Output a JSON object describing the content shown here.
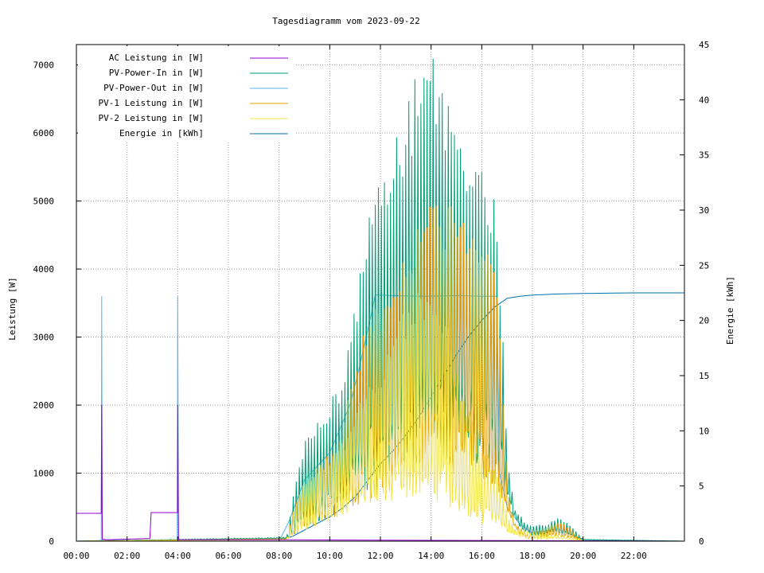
{
  "chart_data": {
    "type": "line",
    "title": "Tagesdiagramm vom 2023-09-22",
    "xlabel": "",
    "ylabel": "Leistung [W]",
    "y2label": "Energie [kWh]",
    "x_ticks": [
      "00:00",
      "02:00",
      "04:00",
      "06:00",
      "08:00",
      "10:00",
      "12:00",
      "14:00",
      "16:00",
      "18:00",
      "20:00",
      "22:00"
    ],
    "xlim_hours": [
      0,
      24
    ],
    "ylim": [
      0,
      7300
    ],
    "y_ticks": [
      0,
      1000,
      2000,
      3000,
      4000,
      5000,
      6000,
      7000
    ],
    "y2lim": [
      0,
      45
    ],
    "y2_ticks": [
      0,
      5,
      10,
      15,
      20,
      25,
      30,
      35,
      40,
      45
    ],
    "grid": true,
    "legend_position": "top-left",
    "series": [
      {
        "name": "AC Leistung in [W]",
        "color": "#9400d3",
        "axis": "y",
        "points": [
          [
            0,
            410
          ],
          [
            0.98,
            410
          ],
          [
            1.0,
            2000
          ],
          [
            1.02,
            30
          ],
          [
            1.2,
            20
          ],
          [
            2.9,
            40
          ],
          [
            2.95,
            420
          ],
          [
            3.99,
            420
          ],
          [
            4.0,
            2000
          ],
          [
            4.03,
            20
          ],
          [
            8.0,
            20
          ],
          [
            24,
            0
          ]
        ]
      },
      {
        "name": "PV-Power-In in [W]",
        "color": "#009e73",
        "axis": "y",
        "envelope": [
          [
            0,
            0
          ],
          [
            8.3,
            60
          ],
          [
            8.6,
            800
          ],
          [
            9.0,
            1500
          ],
          [
            9.5,
            1800
          ],
          [
            10.0,
            2100
          ],
          [
            10.5,
            2400
          ],
          [
            11.0,
            3600
          ],
          [
            11.5,
            4800
          ],
          [
            12.0,
            5350
          ],
          [
            12.5,
            5800
          ],
          [
            13.0,
            6300
          ],
          [
            13.5,
            7000
          ],
          [
            14.0,
            7300
          ],
          [
            14.5,
            6700
          ],
          [
            15.0,
            6000
          ],
          [
            15.5,
            5700
          ],
          [
            16.0,
            5500
          ],
          [
            16.5,
            5200
          ],
          [
            16.8,
            3500
          ],
          [
            17.0,
            1300
          ],
          [
            17.3,
            500
          ],
          [
            17.8,
            250
          ],
          [
            18.5,
            250
          ],
          [
            19.0,
            350
          ],
          [
            19.5,
            250
          ],
          [
            20.0,
            30
          ],
          [
            24,
            0
          ]
        ],
        "floor": [
          [
            0,
            0
          ],
          [
            8.3,
            40
          ],
          [
            9.0,
            200
          ],
          [
            10.0,
            350
          ],
          [
            11.0,
            600
          ],
          [
            12.0,
            900
          ],
          [
            13.0,
            1200
          ],
          [
            14.0,
            1300
          ],
          [
            15.0,
            1250
          ],
          [
            16.0,
            1100
          ],
          [
            16.5,
            1000
          ],
          [
            17.0,
            600
          ],
          [
            17.5,
            200
          ],
          [
            18.0,
            80
          ],
          [
            19.0,
            120
          ],
          [
            20.0,
            20
          ],
          [
            24,
            0
          ]
        ]
      },
      {
        "name": "PV-Power-Out in [W]",
        "color": "#56b4e9",
        "axis": "y",
        "points": [
          [
            0,
            0
          ],
          [
            0.98,
            0
          ],
          [
            1.0,
            3600
          ],
          [
            1.02,
            0
          ],
          [
            3.98,
            0
          ],
          [
            4.0,
            3600
          ],
          [
            4.03,
            0
          ],
          [
            8.0,
            0
          ],
          [
            8.4,
            300
          ],
          [
            9.0,
            900
          ],
          [
            10.0,
            1300
          ],
          [
            10.8,
            2000
          ],
          [
            11.2,
            2600
          ],
          [
            11.5,
            3100
          ],
          [
            11.8,
            3620
          ],
          [
            12.5,
            3610
          ],
          [
            13.5,
            3600
          ],
          [
            14.0,
            3600
          ],
          [
            15.0,
            3610
          ],
          [
            16.0,
            3600
          ],
          [
            16.6,
            3600
          ],
          [
            16.7,
            1000
          ],
          [
            17.0,
            500
          ],
          [
            17.5,
            250
          ],
          [
            18.0,
            120
          ],
          [
            19.0,
            180
          ],
          [
            20.0,
            20
          ],
          [
            24,
            0
          ]
        ]
      },
      {
        "name": "PV-1 Leistung in [W]",
        "color": "#e69f00",
        "axis": "y",
        "envelope": [
          [
            0,
            0
          ],
          [
            8.3,
            40
          ],
          [
            8.6,
            500
          ],
          [
            9.0,
            900
          ],
          [
            9.5,
            1100
          ],
          [
            10.0,
            1300
          ],
          [
            10.5,
            1700
          ],
          [
            11.0,
            2700
          ],
          [
            11.5,
            3300
          ],
          [
            12.0,
            3500
          ],
          [
            12.5,
            3800
          ],
          [
            13.0,
            4200
          ],
          [
            13.5,
            4900
          ],
          [
            14.0,
            5300
          ],
          [
            14.5,
            5000
          ],
          [
            15.0,
            4900
          ],
          [
            15.5,
            4800
          ],
          [
            16.0,
            4600
          ],
          [
            16.5,
            4400
          ],
          [
            16.8,
            2500
          ],
          [
            17.0,
            900
          ],
          [
            17.3,
            300
          ],
          [
            17.8,
            100
          ],
          [
            18.5,
            200
          ],
          [
            19.0,
            300
          ],
          [
            19.5,
            200
          ],
          [
            20.0,
            0
          ],
          [
            24,
            0
          ]
        ],
        "floor": [
          [
            0,
            0
          ],
          [
            8.3,
            30
          ],
          [
            9.0,
            150
          ],
          [
            10.0,
            300
          ],
          [
            11.0,
            500
          ],
          [
            12.0,
            700
          ],
          [
            13.0,
            900
          ],
          [
            14.0,
            1000
          ],
          [
            15.0,
            950
          ],
          [
            16.0,
            800
          ],
          [
            16.5,
            700
          ],
          [
            17.0,
            400
          ],
          [
            17.5,
            100
          ],
          [
            18.0,
            30
          ],
          [
            19.0,
            80
          ],
          [
            20.0,
            0
          ],
          [
            24,
            0
          ]
        ]
      },
      {
        "name": "PV-2 Leistung in [W]",
        "color": "#f0e442",
        "axis": "y",
        "envelope": [
          [
            0,
            0
          ],
          [
            8.3,
            30
          ],
          [
            8.6,
            500
          ],
          [
            9.0,
            900
          ],
          [
            9.5,
            1100
          ],
          [
            10.0,
            1250
          ],
          [
            10.5,
            1450
          ],
          [
            11.0,
            2000
          ],
          [
            11.5,
            2400
          ],
          [
            12.0,
            2600
          ],
          [
            12.5,
            3000
          ],
          [
            13.0,
            3500
          ],
          [
            13.5,
            3800
          ],
          [
            14.0,
            3700
          ],
          [
            14.5,
            3500
          ],
          [
            15.0,
            2600
          ],
          [
            15.5,
            2000
          ],
          [
            16.0,
            1500
          ],
          [
            16.5,
            1100
          ],
          [
            16.8,
            800
          ],
          [
            17.0,
            400
          ],
          [
            17.3,
            200
          ],
          [
            17.8,
            150
          ],
          [
            18.5,
            120
          ],
          [
            19.0,
            100
          ],
          [
            19.5,
            60
          ],
          [
            20.0,
            0
          ],
          [
            24,
            0
          ]
        ],
        "floor": [
          [
            0,
            0
          ],
          [
            8.3,
            20
          ],
          [
            9.0,
            150
          ],
          [
            10.0,
            300
          ],
          [
            11.0,
            450
          ],
          [
            12.0,
            550
          ],
          [
            13.0,
            600
          ],
          [
            14.0,
            600
          ],
          [
            15.0,
            450
          ],
          [
            16.0,
            250
          ],
          [
            16.5,
            200
          ],
          [
            17.0,
            120
          ],
          [
            17.5,
            60
          ],
          [
            18.0,
            20
          ],
          [
            19.0,
            40
          ],
          [
            20.0,
            0
          ],
          [
            24,
            0
          ]
        ]
      },
      {
        "name": "Energie in [kWh]",
        "color": "#0072b2",
        "axis": "y2",
        "points": [
          [
            0,
            0
          ],
          [
            1.0,
            0.05
          ],
          [
            4.0,
            0.1
          ],
          [
            8.0,
            0.2
          ],
          [
            8.5,
            0.4
          ],
          [
            9.0,
            1.0
          ],
          [
            9.5,
            1.6
          ],
          [
            10.0,
            2.2
          ],
          [
            10.5,
            3.0
          ],
          [
            11.0,
            4.0
          ],
          [
            11.5,
            5.5
          ],
          [
            12.0,
            7.0
          ],
          [
            12.5,
            8.2
          ],
          [
            13.0,
            9.6
          ],
          [
            13.5,
            11.2
          ],
          [
            14.0,
            13.1
          ],
          [
            14.5,
            15.0
          ],
          [
            15.0,
            16.9
          ],
          [
            15.5,
            18.6
          ],
          [
            16.0,
            20.0
          ],
          [
            16.5,
            21.2
          ],
          [
            17.0,
            22.0
          ],
          [
            17.5,
            22.2
          ],
          [
            18.0,
            22.3
          ],
          [
            19.0,
            22.4
          ],
          [
            20.0,
            22.45
          ],
          [
            22.0,
            22.5
          ],
          [
            24,
            22.5
          ]
        ]
      }
    ]
  }
}
